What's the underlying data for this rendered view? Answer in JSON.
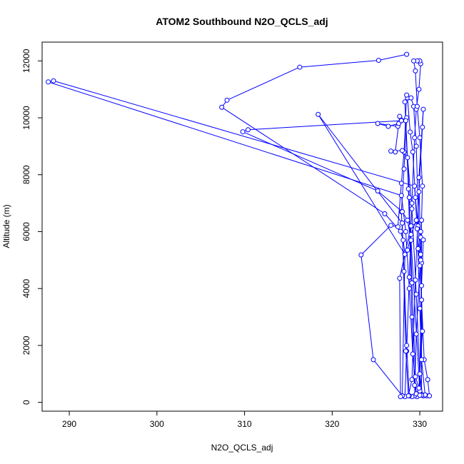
{
  "chart_data": {
    "type": "line",
    "title": "ATOM2 Southbound N2O_QCLS_adj",
    "xlabel": "N2O_QCLS_adj",
    "ylabel": "Altitude (m)",
    "xlim": [
      286.9,
      332.6
    ],
    "ylim": [
      -310,
      12660
    ],
    "xticks": [
      290,
      300,
      310,
      320,
      330
    ],
    "yticks": [
      0,
      2000,
      4000,
      6000,
      8000,
      10000,
      12000
    ],
    "grid": false,
    "series": [
      {
        "color": "#0000ff",
        "marker": "open-circle",
        "points": [
          [
            328.5,
            12230
          ],
          [
            325.3,
            12020
          ],
          [
            316.3,
            11780
          ],
          [
            308.0,
            10620
          ],
          [
            307.4,
            10370
          ],
          [
            326.0,
            6630
          ],
          [
            327.8,
            6010
          ],
          [
            328.1,
            5700
          ],
          [
            328.3,
            5240
          ],
          [
            328.6,
            5350
          ],
          [
            329.0,
            5900
          ],
          [
            329.6,
            6400
          ],
          [
            330.1,
            6000
          ],
          [
            329.8,
            5400
          ],
          [
            330.2,
            4900
          ],
          [
            330.0,
            300
          ],
          [
            329.7,
            200
          ],
          [
            329.4,
            600
          ],
          [
            329.1,
            3000
          ],
          [
            328.7,
            7500
          ],
          [
            328.3,
            10560
          ],
          [
            328.6,
            10700
          ],
          [
            328.9,
            9500
          ],
          [
            329.2,
            8800
          ],
          [
            329.5,
            7200
          ],
          [
            329.8,
            6200
          ],
          [
            330.1,
            5800
          ],
          [
            330.4,
            5710
          ],
          [
            330.2,
            4100
          ],
          [
            330.0,
            1000
          ],
          [
            330.3,
            260
          ],
          [
            330.8,
            230
          ],
          [
            331.1,
            230
          ],
          [
            330.9,
            800
          ],
          [
            330.5,
            1500
          ],
          [
            330.2,
            3600
          ],
          [
            330.0,
            4800
          ],
          [
            329.6,
            9000
          ],
          [
            329.3,
            10400
          ],
          [
            329.0,
            10700
          ],
          [
            328.5,
            10800
          ],
          [
            328.2,
            8800
          ],
          [
            327.9,
            7700
          ],
          [
            327.5,
            6170
          ],
          [
            326.7,
            6220
          ],
          [
            323.3,
            5180
          ],
          [
            324.7,
            1500
          ],
          [
            328.0,
            230
          ],
          [
            328.3,
            200
          ],
          [
            328.5,
            1800
          ],
          [
            328.8,
            4400
          ],
          [
            329.1,
            7000
          ],
          [
            329.4,
            9300
          ],
          [
            329.6,
            10300
          ],
          [
            329.9,
            11000
          ],
          [
            330.1,
            11900
          ],
          [
            330.0,
            12000
          ],
          [
            329.7,
            12000
          ],
          [
            329.3,
            12000
          ],
          [
            329.5,
            11650
          ],
          [
            329.7,
            10400
          ],
          [
            330.0,
            9300
          ],
          [
            330.3,
            7600
          ],
          [
            330.1,
            5200
          ],
          [
            329.6,
            2400
          ],
          [
            329.4,
            230
          ],
          [
            329.1,
            200
          ],
          [
            328.8,
            230
          ],
          [
            328.5,
            2000
          ],
          [
            328.2,
            4600
          ],
          [
            327.9,
            6700
          ],
          [
            328.2,
            8200
          ],
          [
            328.5,
            10000
          ],
          [
            327.5,
            9700
          ],
          [
            325.2,
            9800
          ],
          [
            326.4,
            9700
          ],
          [
            327.6,
            9800
          ],
          [
            327.9,
            9900
          ],
          [
            310.4,
            9580
          ],
          [
            309.8,
            9510
          ],
          [
            325.2,
            7430
          ],
          [
            328.0,
            6700
          ],
          [
            328.6,
            6400
          ],
          [
            329.0,
            5700
          ],
          [
            330.0,
            400
          ],
          [
            329.5,
            900
          ],
          [
            329.1,
            4200
          ],
          [
            328.8,
            7200
          ],
          [
            328.4,
            9900
          ],
          [
            327.7,
            10050
          ],
          [
            327.2,
            8800
          ],
          [
            326.7,
            8830
          ],
          [
            328.0,
            8850
          ],
          [
            328.6,
            8600
          ],
          [
            329.1,
            6800
          ],
          [
            329.6,
            3800
          ],
          [
            330.1,
            250
          ],
          [
            330.4,
            230
          ],
          [
            330.6,
            260
          ],
          [
            330.2,
            1500
          ],
          [
            330.0,
            3300
          ],
          [
            329.7,
            6100
          ],
          [
            329.4,
            7600
          ],
          [
            288.2,
            11300
          ],
          [
            287.6,
            11260
          ],
          [
            327.9,
            7270
          ],
          [
            328.4,
            6000
          ],
          [
            328.8,
            4000
          ],
          [
            329.2,
            1700
          ],
          [
            329.6,
            300
          ],
          [
            329.9,
            500
          ],
          [
            330.3,
            2500
          ],
          [
            330.1,
            5000
          ],
          [
            329.9,
            7900
          ],
          [
            330.4,
            10300
          ],
          [
            330.3,
            9670
          ],
          [
            329.9,
            7400
          ],
          [
            329.5,
            4300
          ],
          [
            329.1,
            800
          ],
          [
            328.7,
            230
          ],
          [
            328.4,
            1800
          ],
          [
            328.0,
            6300
          ],
          [
            318.4,
            10120
          ],
          [
            328.3,
            5200
          ],
          [
            328.0,
            230
          ],
          [
            327.8,
            200
          ],
          [
            327.7,
            4360
          ],
          [
            329.0,
            6200
          ],
          [
            330.2,
            6400
          ],
          [
            330.2,
            250
          ],
          [
            330.0,
            250
          ]
        ]
      }
    ]
  }
}
